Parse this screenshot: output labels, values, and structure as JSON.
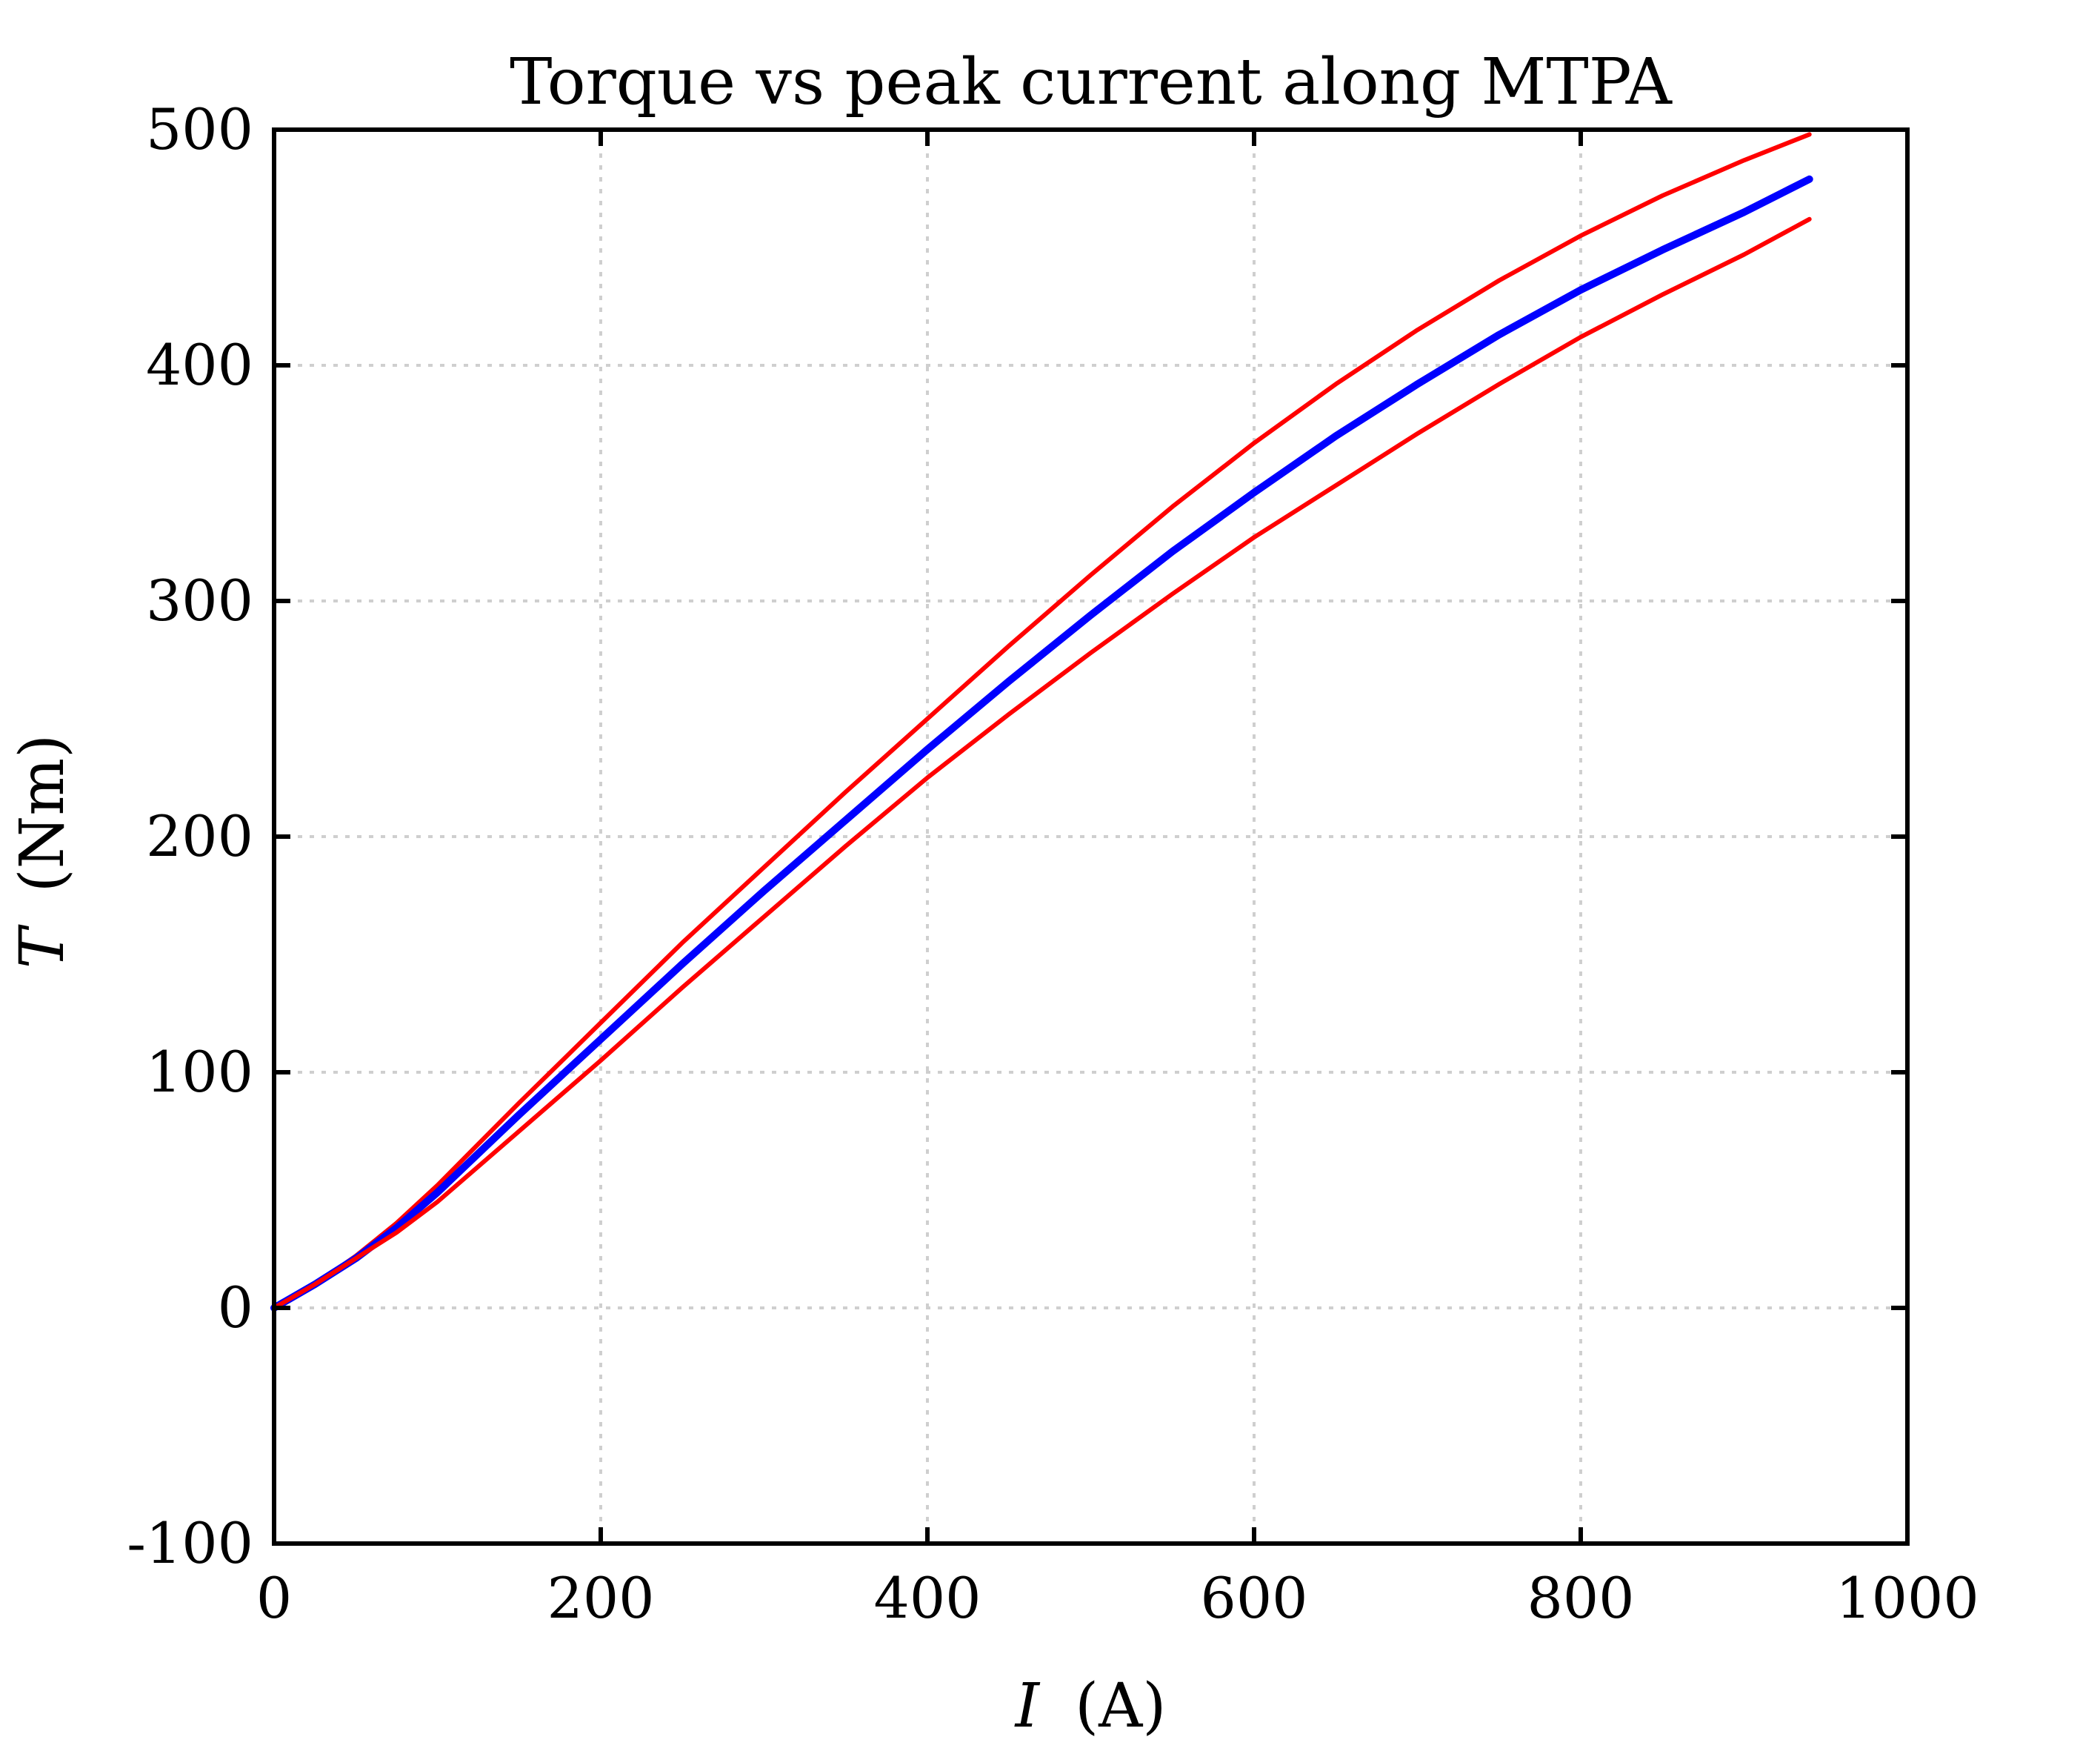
{
  "chart_data": {
    "type": "line",
    "title": "Torque vs peak current along MTPA",
    "xlabel_var": "I",
    "xlabel_unit": "(A)",
    "ylabel_var": "T",
    "ylabel_unit": "(Nm)",
    "xlim": [
      0,
      1000
    ],
    "ylim": [
      -100,
      500
    ],
    "xticks": [
      "0",
      "200",
      "400",
      "600",
      "800",
      "1000"
    ],
    "yticks": [
      "-100",
      "0",
      "100",
      "200",
      "300",
      "400",
      "500"
    ],
    "grid": true,
    "legend": "none",
    "series": [
      {
        "color": "#ff0000",
        "width": 6,
        "x": [
          0,
          25,
          50,
          75,
          100,
          150,
          200,
          250,
          300,
          350,
          400,
          450,
          500,
          550,
          600,
          650,
          700,
          750,
          800,
          850,
          900,
          940
        ],
        "y": [
          0,
          10,
          22,
          36,
          52,
          87,
          121,
          155,
          187,
          219,
          250,
          281,
          311,
          340,
          367,
          392,
          415,
          436,
          455,
          472,
          487,
          498
        ]
      },
      {
        "color": "#0000ff",
        "width": 10,
        "x": [
          0,
          25,
          50,
          75,
          100,
          150,
          200,
          250,
          300,
          350,
          400,
          450,
          500,
          550,
          600,
          650,
          700,
          750,
          800,
          850,
          900,
          940
        ],
        "y": [
          0,
          10,
          21,
          34,
          49,
          82,
          114,
          146,
          177,
          207,
          237,
          266,
          294,
          321,
          346,
          370,
          392,
          413,
          432,
          449,
          465,
          479
        ]
      },
      {
        "color": "#ff0000",
        "width": 6,
        "x": [
          0,
          25,
          50,
          75,
          100,
          150,
          200,
          250,
          300,
          350,
          400,
          450,
          500,
          550,
          600,
          650,
          700,
          750,
          800,
          850,
          900,
          940
        ],
        "y": [
          0,
          10,
          21,
          32,
          45,
          75,
          105,
          136,
          166,
          196,
          225,
          252,
          278,
          303,
          327,
          349,
          371,
          392,
          412,
          430,
          447,
          462
        ]
      }
    ]
  }
}
